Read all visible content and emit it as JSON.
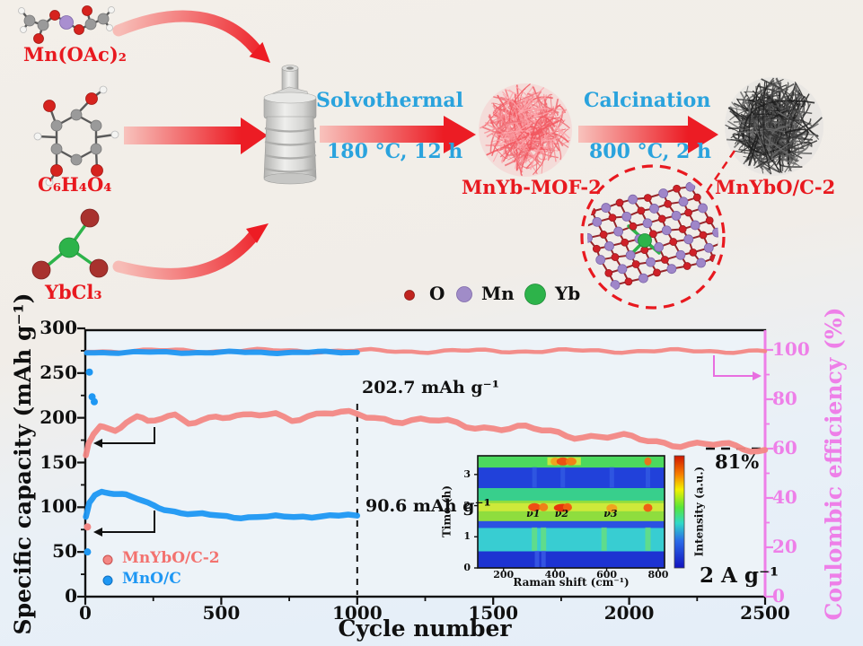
{
  "scheme": {
    "reactants": [
      {
        "id": "mn-acetate",
        "label": "Mn(OAc)₂"
      },
      {
        "id": "dhbq",
        "label": "C₆H₄O₄"
      },
      {
        "id": "ytterbium-chloride",
        "label": "YbCl₃"
      }
    ],
    "steps": [
      {
        "name": "Solvothermal",
        "condition": "180 °C, 12 h"
      },
      {
        "name": "Calcination",
        "condition": "800 °C, 2 h"
      }
    ],
    "intermediate_label": "MnYb-MOF-2",
    "product_label": "MnYbO/C-2",
    "atom_legend": [
      {
        "symbol": "O",
        "color": "#c0241f"
      },
      {
        "symbol": "Mn",
        "color": "#a08cc8"
      },
      {
        "symbol": "Yb",
        "color": "#2db34a"
      }
    ]
  },
  "colors": {
    "accent_red": "#e8191f",
    "accent_blue": "#2aa3dd",
    "series_pink": "#f38784",
    "series_blue": "#1e97f3",
    "right_axis_violet": "#ee7fe8"
  },
  "chart_data": {
    "main": {
      "type": "line",
      "xlabel": "Cycle number",
      "ylabel_left": "Specific capacity (mAh g⁻¹)",
      "ylabel_right": "Coulombic efficiency (%)",
      "xlim": [
        0,
        2500
      ],
      "ylim_left": [
        0,
        300
      ],
      "ylim_right": [
        0,
        100
      ],
      "xticks": [
        0,
        500,
        1000,
        1500,
        2000,
        2500
      ],
      "yticks_left": [
        0,
        50,
        100,
        150,
        200,
        250,
        300
      ],
      "yticks_right": [
        0,
        20,
        40,
        60,
        80,
        100
      ],
      "legend": [
        {
          "label": "MnYbO/C-2",
          "color": "#f38784"
        },
        {
          "label": "MnO/C",
          "color": "#1e97f3"
        }
      ],
      "annotations": [
        {
          "text": "202.7 mAh g⁻¹",
          "at_cycle": 1000
        },
        {
          "text": "90.6 mAh g⁻¹",
          "at_cycle": 1000
        },
        {
          "text": "81%",
          "at_cycle": 2500
        },
        {
          "text": "2 A g⁻¹"
        }
      ],
      "series": [
        {
          "name": "MnYbO/C-2 capacity",
          "axis": "left",
          "color": "#f38784",
          "width": 6.5,
          "wiggle": [
            3.2,
            55
          ],
          "points": [
            [
              2,
              160
            ],
            [
              12,
              174
            ],
            [
              30,
              184
            ],
            [
              55,
              192
            ],
            [
              80,
              190
            ],
            [
              110,
              189
            ],
            [
              150,
              197
            ],
            [
              190,
              199
            ],
            [
              230,
              194
            ],
            [
              280,
              197
            ],
            [
              330,
              201
            ],
            [
              380,
              197
            ],
            [
              430,
              200
            ],
            [
              480,
              203
            ],
            [
              530,
              201
            ],
            [
              580,
              199
            ],
            [
              640,
              202
            ],
            [
              700,
              204
            ],
            [
              760,
              201
            ],
            [
              820,
              203
            ],
            [
              880,
              205
            ],
            [
              940,
              203
            ],
            [
              1000,
              202.7
            ],
            [
              1100,
              200
            ],
            [
              1200,
              197
            ],
            [
              1300,
              195
            ],
            [
              1400,
              192
            ],
            [
              1500,
              190
            ],
            [
              1620,
              187
            ],
            [
              1740,
              183
            ],
            [
              1860,
              180
            ],
            [
              1980,
              177
            ],
            [
              2100,
              174
            ],
            [
              2220,
              171
            ],
            [
              2340,
              168
            ],
            [
              2420,
              166
            ],
            [
              2500,
              164
            ]
          ]
        },
        {
          "name": "MnO/C capacity",
          "axis": "left",
          "color": "#1e97f3",
          "width": 6.5,
          "wiggle": [
            1.2,
            40
          ],
          "points": [
            [
              2,
              90
            ],
            [
              15,
              106
            ],
            [
              35,
              114
            ],
            [
              60,
              118
            ],
            [
              90,
              117
            ],
            [
              120,
              115
            ],
            [
              150,
              113
            ],
            [
              190,
              109
            ],
            [
              230,
              104
            ],
            [
              270,
              100
            ],
            [
              310,
              97
            ],
            [
              350,
              94
            ],
            [
              400,
              92
            ],
            [
              460,
              91
            ],
            [
              520,
              90
            ],
            [
              600,
              89
            ],
            [
              700,
              89
            ],
            [
              800,
              90
            ],
            [
              900,
              90
            ],
            [
              1000,
              90.6
            ]
          ]
        },
        {
          "name": "MnYbO/C-2 coulombic efficiency",
          "axis": "right",
          "color": "#f38784",
          "width": 4.5,
          "wiggle": [
            1.4,
            60
          ],
          "points": [
            [
              5,
              99.6
            ],
            [
              600,
              99.7
            ],
            [
              1200,
              99.5
            ],
            [
              1800,
              99.6
            ],
            [
              2500,
              99.5
            ]
          ]
        },
        {
          "name": "MnO/C coulombic efficiency",
          "axis": "right",
          "color": "#1e97f3",
          "width": 6,
          "wiggle": [
            0.8,
            50
          ],
          "points": [
            [
              5,
              99.0
            ],
            [
              500,
              99.0
            ],
            [
              1000,
              99.0
            ]
          ]
        },
        {
          "name": "MnYbO/C-2 first cycle",
          "axis": "left",
          "color": "#f38784",
          "style": "dots",
          "points": [
            [
              8,
              78
            ]
          ]
        },
        {
          "name": "MnO/C first cycle",
          "axis": "left",
          "color": "#1e97f3",
          "style": "dots",
          "points": [
            [
              8,
              50
            ]
          ]
        },
        {
          "name": "MnO/C early CE",
          "axis": "right",
          "color": "#1e97f3",
          "style": "dots",
          "points": [
            [
              15,
              91
            ],
            [
              25,
              81
            ],
            [
              33,
              79
            ]
          ]
        }
      ]
    },
    "inset": {
      "type": "heatmap",
      "xlabel": "Raman shift (cm⁻¹)",
      "ylabel": "Time (h)",
      "colorbar_label": "Intensity (a.u.)",
      "xticks": [
        200,
        400,
        600,
        800
      ],
      "yticks": [
        0,
        1,
        2,
        3
      ],
      "x_range": [
        100,
        830
      ],
      "y_range": [
        0,
        3.6
      ],
      "peaks": [
        {
          "label": "ν1",
          "raman_shift": 320
        },
        {
          "label": "ν2",
          "raman_shift": 430
        },
        {
          "label": "ν3",
          "raman_shift": 620
        }
      ],
      "high_intensity_times": [
        1.9,
        3.4
      ]
    }
  }
}
